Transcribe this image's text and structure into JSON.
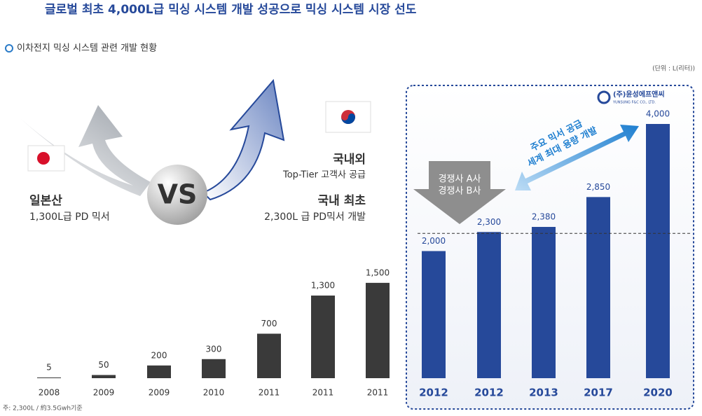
{
  "title": "글로벌 최초 4,000L급 믹싱 시스템 개발 성공으로 믹싱 시스템 시장 선도",
  "subtitle": "이차전지 믹싱  시스템 관련 개발 현황",
  "unit": "(단위 : L(리터))",
  "footnote": "주: 2,300L / 約3.5Gwh기준",
  "annotations": {
    "japan_title": "일본산",
    "japan_text": "1,300L급 PD 믹서",
    "vs": "VS",
    "korea_title1": "국내외",
    "korea_text1": "Top-Tier 고객사 공급",
    "korea_title2": "국내 최초",
    "korea_text2": "2,300L 급 PD믹서 개발",
    "competitor_a": "경쟁사 A사",
    "competitor_b": "경쟁사 B사",
    "supply": "주요 믹서 공급",
    "largest": "세계 최대 용량 개발",
    "logo": "(주)윤성에프앤씨",
    "logo_en": "YUNSUNG F&C CO., LTD."
  },
  "chart_data": {
    "type": "bar",
    "categories": [
      "2008",
      "2009",
      "2009",
      "2010",
      "2011",
      "2011",
      "2011",
      "2012",
      "2012",
      "2013",
      "2017",
      "2020"
    ],
    "values": [
      5,
      50,
      200,
      300,
      700,
      1300,
      1500,
      2000,
      2300,
      2380,
      2850,
      4000
    ],
    "value_labels": [
      "5",
      "50",
      "200",
      "300",
      "700",
      "1,300",
      "1,500",
      "2,000",
      "2,300",
      "2,380",
      "2,850",
      "4,000"
    ],
    "colors": [
      "#3a3a3a",
      "#3a3a3a",
      "#3a3a3a",
      "#3a3a3a",
      "#3a3a3a",
      "#3a3a3a",
      "#3a3a3a",
      "#26499a",
      "#26499a",
      "#26499a",
      "#26499a",
      "#26499a"
    ]
  }
}
